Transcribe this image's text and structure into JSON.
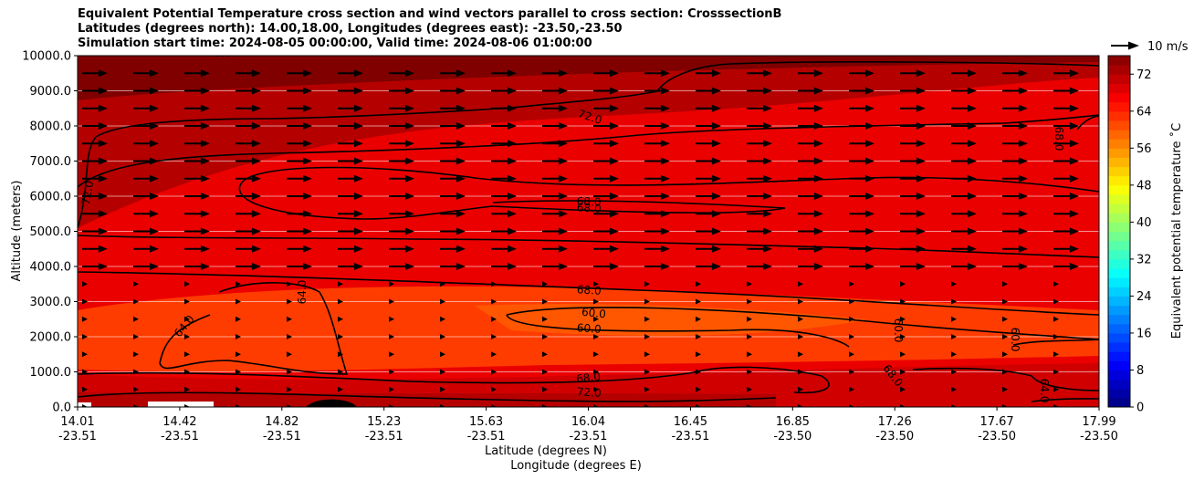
{
  "chart_data": {
    "type": "heatmap",
    "title_lines": [
      "Equivalent Potential Temperature cross section and wind vectors parallel to cross section: CrosssectionB",
      "Latitudes (degrees north): 14.00,18.00, Longitudes (degrees east): -23.50,-23.50",
      "Simulation start time: 2024-08-05 00:00:00, Valid time: 2024-08-06 01:00:00"
    ],
    "xlabel_lat": "Latitude (degrees N)",
    "xlabel_lon": "Longitude (degrees E)",
    "ylabel": "Altitude (meters)",
    "ylim": [
      0,
      10000
    ],
    "x_range": [
      14.01,
      17.99
    ],
    "x_ticks": [
      {
        "lat": "14.01",
        "lon": "-23.51"
      },
      {
        "lat": "14.42",
        "lon": "-23.51"
      },
      {
        "lat": "14.82",
        "lon": "-23.51"
      },
      {
        "lat": "15.23",
        "lon": "-23.51"
      },
      {
        "lat": "15.63",
        "lon": "-23.51"
      },
      {
        "lat": "16.04",
        "lon": "-23.51"
      },
      {
        "lat": "16.45",
        "lon": "-23.51"
      },
      {
        "lat": "16.85",
        "lon": "-23.50"
      },
      {
        "lat": "17.26",
        "lon": "-23.50"
      },
      {
        "lat": "17.67",
        "lon": "-23.50"
      },
      {
        "lat": "17.99",
        "lon": "-23.50"
      }
    ],
    "y_ticks": [
      "0.0",
      "1000.0",
      "2000.0",
      "3000.0",
      "4000.0",
      "5000.0",
      "6000.0",
      "7000.0",
      "8000.0",
      "9000.0",
      "10000.0"
    ],
    "y_tick_values": [
      0,
      1000,
      2000,
      3000,
      4000,
      5000,
      6000,
      7000,
      8000,
      9000,
      10000
    ],
    "colorbar": {
      "label": "Equivalent potential temperature ˚C",
      "min": 0,
      "max": 76,
      "ticks": [
        "0",
        "8",
        "16",
        "24",
        "32",
        "40",
        "48",
        "56",
        "64",
        "72"
      ],
      "tick_values": [
        0,
        8,
        16,
        24,
        32,
        40,
        48,
        56,
        64,
        72
      ],
      "colormap": "jet"
    },
    "quiver_key": {
      "label": "10 m/s",
      "speed_ms": 10
    },
    "contour_labels": [
      "72.0",
      "72.0",
      "68.0",
      "68.0",
      "68.0",
      "68.0",
      "68.0",
      "60.0",
      "60.0",
      "60.0",
      "60.0",
      "64.0",
      "64.0",
      "64.0",
      "76.0",
      "72.0",
      "68.0"
    ],
    "contour_levels": [
      60,
      64,
      68,
      72,
      76
    ],
    "field_description_levels": {
      "upper_layer_7000_to_10000m": 72,
      "mid_layer_4000_to_7000m": 68,
      "lower_layer_1000_to_3500m": 62,
      "surface_layer_0_to_1000m": 70
    },
    "wind": {
      "upper_levels_ms": 9,
      "lower_levels_ms": 2
    }
  }
}
